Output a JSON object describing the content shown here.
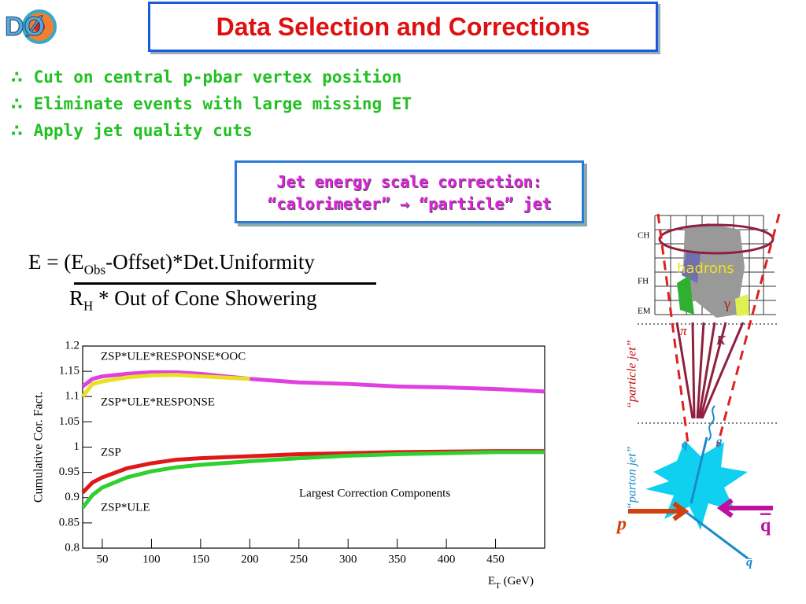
{
  "logo": "DØ",
  "header": {
    "title": "Data Selection and Corrections"
  },
  "bullets": {
    "symbol": "∴",
    "items": [
      "Cut on central p-pbar vertex position",
      "Eliminate events with large missing ET",
      "Apply jet quality cuts"
    ]
  },
  "callout": {
    "line1": "Jet energy scale correction:",
    "line2a": "“calorimeter”",
    "arrow": "→",
    "line2b": "“particle” jet"
  },
  "equation": {
    "num": [
      "E = (E",
      "Obs",
      "-Offset)*Det.Uniformity"
    ],
    "den": [
      "R",
      "H",
      " * Out of Cone Showering"
    ]
  },
  "chart_data": {
    "type": "line",
    "y_label": "Cumulative Cor. Fact.",
    "x_label": [
      "E",
      "T",
      " (GeV)"
    ],
    "annotation": "Largest Correction Components",
    "x": [
      30,
      40,
      50,
      75,
      100,
      125,
      150,
      200,
      250,
      300,
      350,
      400,
      450,
      500
    ],
    "xlim": [
      30,
      500
    ],
    "ylim": [
      0.8,
      1.2
    ],
    "xticks": [
      50,
      100,
      150,
      200,
      250,
      300,
      350,
      400,
      450
    ],
    "yticks": [
      0.8,
      0.85,
      0.9,
      0.95,
      1,
      1.05,
      1.1,
      1.15,
      1.2
    ],
    "series": [
      {
        "name": "ZSP*ULE*RESPONSE*OOC",
        "color": "#e040e0",
        "values": [
          1.12,
          1.135,
          1.14,
          1.145,
          1.148,
          1.148,
          1.145,
          1.135,
          1.128,
          1.125,
          1.12,
          1.118,
          1.115,
          1.11
        ]
      },
      {
        "name": "ZSP*ULE*RESPONSE",
        "color": "#e8e020",
        "values": [
          1.1,
          1.125,
          1.13,
          1.138,
          1.142,
          1.143,
          1.14,
          1.135,
          null,
          null,
          null,
          null,
          null,
          null
        ]
      },
      {
        "name": "ZSP",
        "color": "#e01818",
        "values": [
          0.91,
          0.93,
          0.94,
          0.958,
          0.968,
          0.975,
          0.978,
          0.982,
          0.986,
          0.988,
          0.99,
          0.991,
          0.992,
          0.992
        ]
      },
      {
        "name": "ZSP*ULE",
        "color": "#30d030",
        "values": [
          0.88,
          0.905,
          0.92,
          0.94,
          0.952,
          0.96,
          0.965,
          0.972,
          0.978,
          0.983,
          0.986,
          0.988,
          0.99,
          0.99
        ]
      }
    ]
  },
  "diagram": {
    "layers": [
      "CH",
      "FH",
      "EM"
    ],
    "hadrons": "hadrons",
    "gamma": "γ",
    "pi": "π",
    "kaon": "K",
    "particle_jet": "“particle jet”",
    "parton_jet": "“parton jet”",
    "q": "q",
    "g": "g",
    "p": "p",
    "qbar_beam": "q",
    "qbar": "q̄"
  }
}
